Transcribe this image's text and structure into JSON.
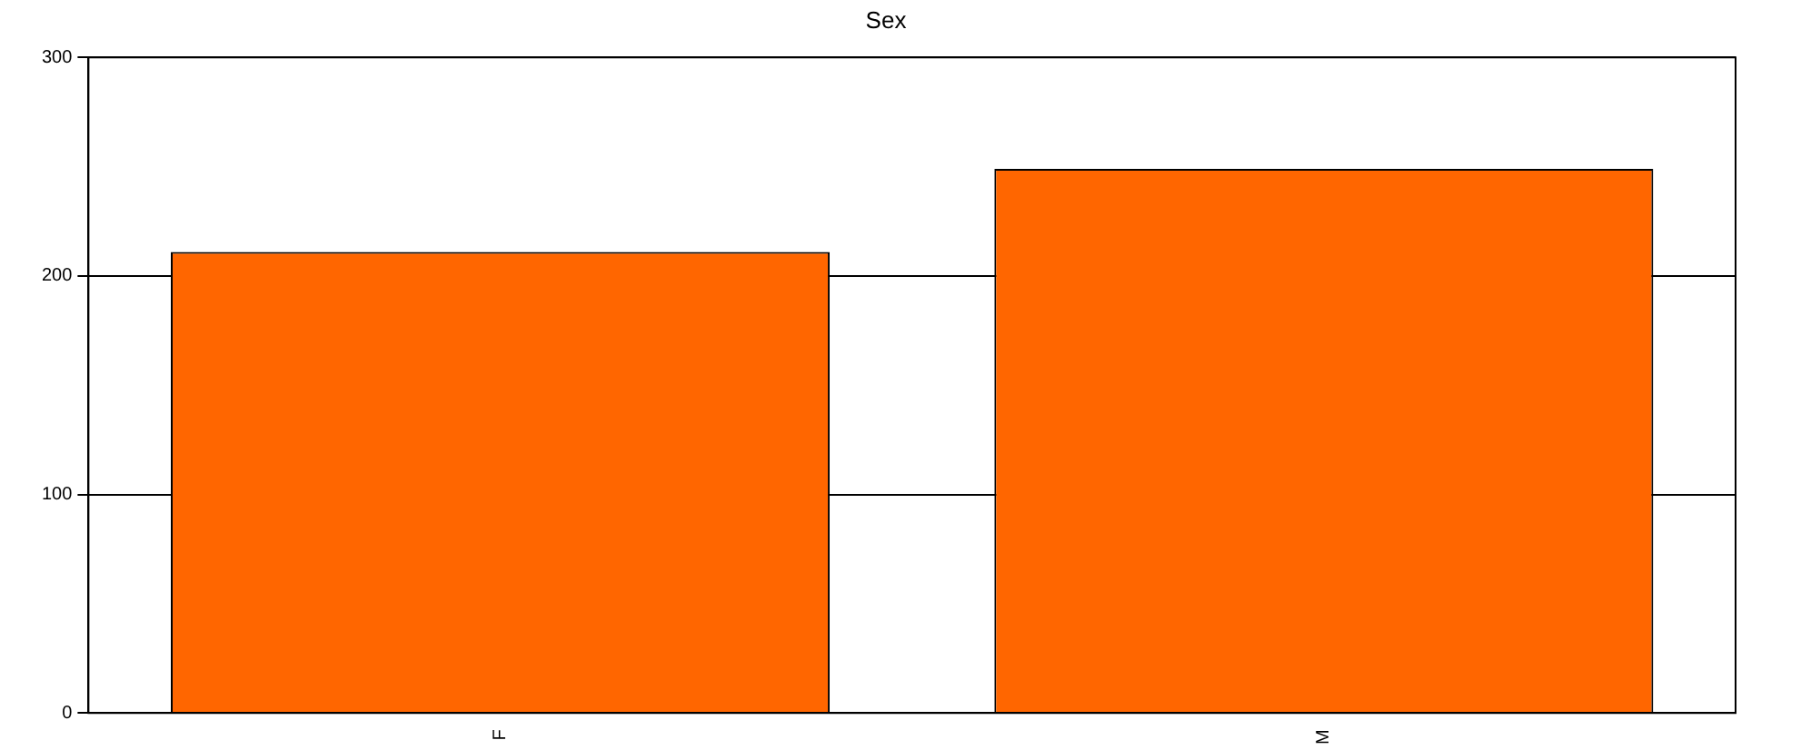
{
  "chart_data": {
    "type": "bar",
    "title": "Sex",
    "categories": [
      "F",
      "M"
    ],
    "values": [
      211,
      249
    ],
    "color": "#ff6600",
    "ylim": [
      0,
      300
    ],
    "yticks": [
      0,
      100,
      200,
      300
    ],
    "grid": "y",
    "legend": false
  }
}
